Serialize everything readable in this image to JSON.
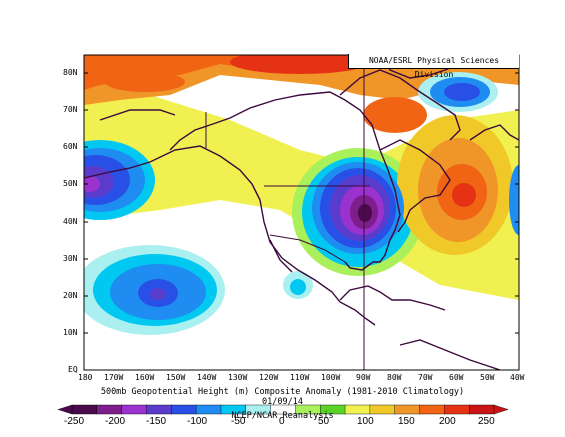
{
  "credit": "NOAA/ESRL Physical Sciences Division",
  "caption": {
    "line1": "500mb Geopotential Height (m) Composite Anomaly (1981-2010 Climatology)",
    "line2": "01/09/14",
    "line3": "NCEP/NCAR Reanalysis"
  },
  "axes": {
    "lat_labels": [
      "80N",
      "70N",
      "60N",
      "50N",
      "40N",
      "30N",
      "20N",
      "10N",
      "EQ"
    ],
    "lon_labels": [
      "180",
      "170W",
      "160W",
      "150W",
      "140W",
      "130W",
      "120W",
      "110W",
      "100W",
      "90W",
      "80W",
      "70W",
      "60W",
      "50W",
      "40W"
    ]
  },
  "colorbar": {
    "labels": [
      "-250",
      "-200",
      "-150",
      "-100",
      "-50",
      "0",
      "50",
      "100",
      "150",
      "200",
      "250"
    ],
    "colors": [
      "#4b0a4b",
      "#7d1e8c",
      "#9a32cd",
      "#5a3ccd",
      "#2850e6",
      "#1e8cf0",
      "#00c8f0",
      "#aaf0f0",
      "#ffffff",
      "#aaf05a",
      "#5ad228",
      "#f0f050",
      "#f0c828",
      "#f09628",
      "#f06414",
      "#e63214",
      "#c81414"
    ]
  },
  "map_layers": {
    "land_color": "#000000",
    "background": "#ffffff"
  }
}
